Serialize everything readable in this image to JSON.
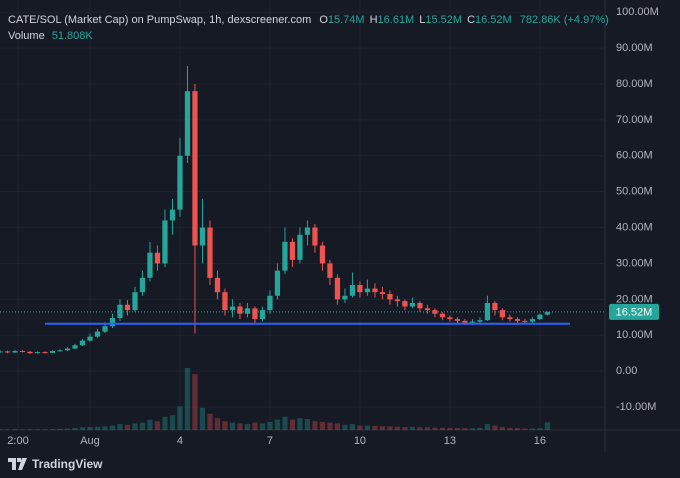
{
  "chart_data": {
    "type": "candlestick",
    "title": "CATE/SOL (Market Cap) on PumpSwap, 1h, dexscreener.com",
    "ohlc_legend": [
      {
        "key": "O",
        "text": "15.74M"
      },
      {
        "key": "H",
        "text": "16.61M"
      },
      {
        "key": "L",
        "text": "15.52M"
      },
      {
        "key": "C",
        "text": "16.52M"
      }
    ],
    "change_text": "782.86K (+4.97%)",
    "volume_label": "Volume",
    "volume_text": "51.808K",
    "brand": "TradingView",
    "up_color": "#26a69a",
    "down_color": "#ef5350",
    "x": [
      -3,
      -2.75,
      -2.5,
      -2.25,
      -2,
      -1.75,
      -1.5,
      -1.25,
      -1,
      -0.75,
      -0.5,
      -0.25,
      0,
      0.25,
      0.5,
      0.75,
      1,
      1.25,
      1.5,
      1.75,
      2,
      2.25,
      2.5,
      2.75,
      3,
      3.25,
      3.5,
      3.75,
      4,
      4.25,
      4.5,
      4.75,
      5,
      5.25,
      5.5,
      5.75,
      6,
      6.25,
      6.5,
      6.75,
      7,
      7.25,
      7.5,
      7.75,
      8,
      8.25,
      8.5,
      8.75,
      9,
      9.25,
      9.5,
      9.75,
      10,
      10.25,
      10.5,
      10.75,
      11,
      11.25,
      11.5,
      11.75,
      12,
      12.25,
      12.5,
      12.75,
      13,
      13.25,
      13.5,
      13.75,
      14,
      14.25,
      14.5,
      14.75,
      15,
      15.25
    ],
    "open": [
      5.3,
      5.5,
      5.2,
      5.6,
      5.4,
      5.0,
      5.3,
      5.1,
      5.6,
      5.8,
      6.3,
      7.2,
      8.5,
      9.6,
      11.0,
      12.5,
      14.8,
      18.5,
      17.0,
      22.0,
      26.0,
      33.0,
      30.0,
      42.0,
      45.0,
      60.0,
      78.0,
      35.0,
      40.0,
      26.0,
      22.0,
      17.0,
      18.0,
      16.0,
      17.5,
      14.5,
      17.0,
      21.0,
      28.0,
      36.0,
      31.0,
      38.0,
      40.0,
      35.0,
      30.0,
      26.0,
      20.0,
      21.0,
      24.0,
      22.0,
      23.0,
      22.0,
      21.5,
      20.0,
      19.5,
      18.0,
      19.0,
      17.5,
      17.0,
      16.0,
      15.0,
      14.5,
      14.0,
      13.5,
      13.8,
      14.2,
      19.0,
      17.0,
      15.0,
      14.5,
      14.0,
      13.8,
      14.5,
      15.74
    ],
    "high": [
      5.8,
      5.7,
      5.9,
      5.8,
      5.6,
      5.5,
      5.5,
      5.8,
      6.1,
      6.6,
      7.6,
      9.0,
      10.4,
      11.8,
      13.6,
      16.0,
      20.0,
      19.8,
      23.5,
      28.0,
      36.0,
      35.0,
      45.0,
      48.0,
      65.0,
      85.0,
      80.0,
      48.0,
      42.0,
      28.0,
      23.0,
      20.0,
      19.0,
      19.0,
      18.0,
      18.0,
      22.5,
      30.0,
      40.0,
      37.0,
      40.0,
      42.0,
      41.0,
      36.0,
      31.0,
      27.0,
      23.0,
      27.5,
      25.0,
      25.5,
      24.5,
      23.5,
      22.5,
      21.0,
      20.0,
      20.5,
      19.5,
      18.5,
      17.5,
      16.5,
      15.5,
      15.0,
      14.5,
      14.5,
      15.0,
      21.0,
      19.5,
      17.5,
      15.8,
      15.0,
      14.6,
      15.0,
      16.0,
      16.61
    ],
    "low": [
      5.1,
      5.0,
      5.0,
      5.2,
      4.8,
      4.9,
      4.9,
      5.0,
      5.4,
      5.6,
      6.1,
      7.0,
      8.2,
      9.3,
      10.6,
      12.0,
      14.0,
      15.5,
      16.5,
      21.0,
      25.0,
      28.0,
      29.0,
      38.0,
      43.0,
      58.0,
      10.5,
      30.0,
      24.0,
      20.0,
      15.5,
      15.0,
      14.5,
      15.0,
      13.5,
      13.8,
      16.0,
      20.0,
      27.0,
      29.0,
      30.0,
      35.0,
      33.0,
      28.0,
      24.0,
      18.5,
      19.0,
      20.5,
      20.5,
      21.0,
      20.5,
      20.0,
      18.5,
      18.0,
      17.0,
      17.5,
      16.5,
      16.0,
      15.0,
      14.2,
      13.8,
      13.2,
      12.8,
      12.9,
      13.2,
      14.0,
      15.5,
      14.2,
      13.8,
      13.3,
      13.2,
      13.4,
      14.2,
      15.52
    ],
    "close": [
      5.5,
      5.2,
      5.6,
      5.4,
      5.0,
      5.3,
      5.1,
      5.6,
      5.8,
      6.3,
      7.2,
      8.5,
      9.6,
      11.0,
      12.5,
      14.8,
      18.5,
      17.0,
      22.0,
      26.0,
      33.0,
      30.0,
      42.0,
      45.0,
      60.0,
      78.0,
      35.0,
      40.0,
      26.0,
      22.0,
      17.0,
      18.0,
      16.0,
      17.5,
      14.5,
      17.0,
      21.0,
      28.0,
      36.0,
      31.0,
      38.0,
      40.0,
      35.0,
      30.0,
      26.0,
      20.0,
      21.0,
      24.0,
      22.0,
      23.0,
      22.0,
      21.5,
      20.0,
      19.5,
      18.0,
      19.0,
      17.5,
      17.0,
      16.0,
      15.0,
      14.5,
      14.0,
      13.5,
      13.8,
      14.2,
      19.0,
      17.0,
      15.0,
      14.5,
      14.0,
      13.8,
      14.5,
      15.74,
      16.52
    ],
    "volume": [
      5,
      4,
      5,
      4,
      5,
      4,
      4,
      6,
      8,
      10,
      14,
      18,
      20,
      22,
      25,
      30,
      40,
      35,
      45,
      50,
      70,
      60,
      90,
      100,
      160,
      420,
      380,
      150,
      110,
      80,
      60,
      50,
      45,
      40,
      50,
      45,
      55,
      70,
      90,
      70,
      80,
      75,
      60,
      55,
      50,
      45,
      35,
      40,
      30,
      30,
      28,
      26,
      25,
      22,
      20,
      22,
      18,
      18,
      16,
      15,
      14,
      13,
      12,
      12,
      14,
      40,
      30,
      20,
      15,
      12,
      10,
      10,
      12,
      51.808
    ],
    "xlim": [
      -3,
      17.17
    ],
    "ylim": [
      -16.4,
      103.4
    ],
    "yticks": [
      {
        "value": 100,
        "label": "100.00M"
      },
      {
        "value": 90,
        "label": "90.00M"
      },
      {
        "value": 80,
        "label": "80.00M"
      },
      {
        "value": 70,
        "label": "70.00M"
      },
      {
        "value": 60,
        "label": "60.00M"
      },
      {
        "value": 50,
        "label": "50.00M"
      },
      {
        "value": 40,
        "label": "40.00M"
      },
      {
        "value": 30,
        "label": "30.00M"
      },
      {
        "value": 20,
        "label": "20.00M"
      },
      {
        "value": 10,
        "label": "10.00M"
      },
      {
        "value": 0,
        "label": "0.00"
      },
      {
        "value": -10,
        "label": "-10.00M"
      }
    ],
    "xticks": [
      {
        "value": -2.4,
        "label": "2:00"
      },
      {
        "value": 0,
        "label": "Aug"
      },
      {
        "value": 3,
        "label": "4"
      },
      {
        "value": 6,
        "label": "7"
      },
      {
        "value": 9,
        "label": "10"
      },
      {
        "value": 12,
        "label": "13"
      },
      {
        "value": 15,
        "label": "16"
      }
    ],
    "last_price": {
      "value": 16.52,
      "label": "16.52M"
    },
    "hline": {
      "value": 13.2,
      "x": [
        -1.5,
        16
      ],
      "color": "#2962ff"
    }
  }
}
